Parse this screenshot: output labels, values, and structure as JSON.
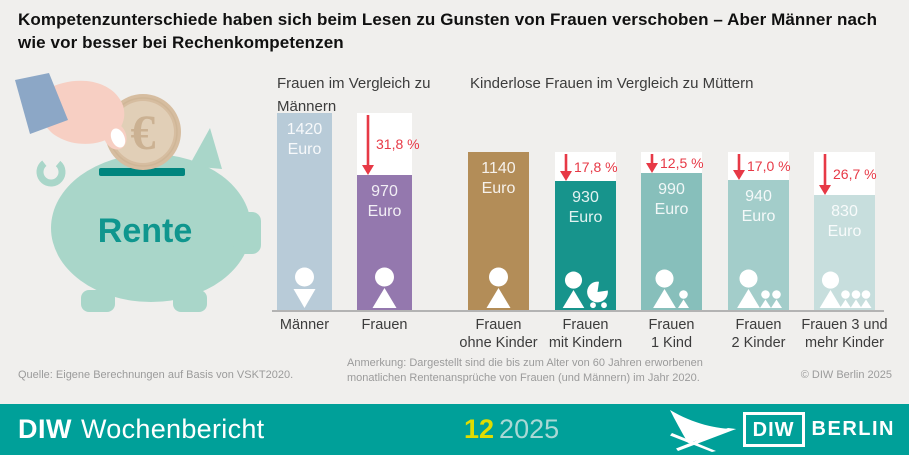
{
  "title": "Kompetenzunterschiede haben sich beim Lesen zu Gunsten von Frauen verschoben – Aber Männer nach wie vor besser bei Rechenkompetenzen",
  "illustration": {
    "label": "Rente",
    "coin_symbol": "€",
    "pig_color": "#a9d6c9",
    "slot_color": "#00857e",
    "label_color": "#0f968e"
  },
  "chart_data": {
    "type": "bar",
    "unit": "Euro",
    "arrow_color": "#e73946",
    "baseline_color": "#b3b3b3",
    "groups": [
      {
        "title": "Frauen im Vergleich zu Männern",
        "bars": [
          {
            "label_lines": [
              "Männer"
            ],
            "value": 1420,
            "color": "#b8cbd8",
            "icon": "man"
          },
          {
            "label_lines": [
              "Frauen"
            ],
            "value": 970,
            "color": "#9478ae",
            "icon": "woman",
            "drop_pct": "31,8 %"
          }
        ]
      },
      {
        "title": "Kinderlose Frauen im Vergleich zu Müttern",
        "bars": [
          {
            "label_lines": [
              "Frauen",
              "ohne Kinder"
            ],
            "value": 1140,
            "color": "#b38d58",
            "icon": "woman"
          },
          {
            "label_lines": [
              "Frauen",
              "mit Kindern"
            ],
            "value": 930,
            "color": "#17948c",
            "icon": "woman-stroller",
            "drop_pct": "17,8 %"
          },
          {
            "label_lines": [
              "Frauen",
              "1 Kind"
            ],
            "value": 990,
            "color": "#87bfbb",
            "icon": "woman-1child",
            "drop_pct": "12,5 %"
          },
          {
            "label_lines": [
              "Frauen",
              "2 Kinder"
            ],
            "value": 940,
            "color": "#a3cdca",
            "icon": "woman-2children",
            "drop_pct": "17,0 %"
          },
          {
            "label_lines": [
              "Frauen 3 und",
              "mehr Kinder"
            ],
            "value": 830,
            "color": "#c7dedd",
            "icon": "woman-3children",
            "drop_pct": "26,7 %"
          }
        ]
      }
    ]
  },
  "footer": {
    "source": "Quelle: Eigene Berechnungen auf Basis von VSKT2020.",
    "note_lines": [
      "Anmerkung: Dargestellt sind die bis zum Alter von 60 Jahren erworbenen",
      "monatlichen Rentenansprüche von Frauen (und Männern) im Jahr 2020."
    ],
    "copyright": "© DIW Berlin 2025"
  },
  "banner": {
    "background": "#00a099",
    "brand_bold": "DIW",
    "brand_regular": "Wochenbericht",
    "issue_number": "12",
    "issue_year": "2025",
    "issue_number_color": "#e0dc00",
    "logo": {
      "box_text": "DIW",
      "suffix": "BERLIN"
    }
  }
}
